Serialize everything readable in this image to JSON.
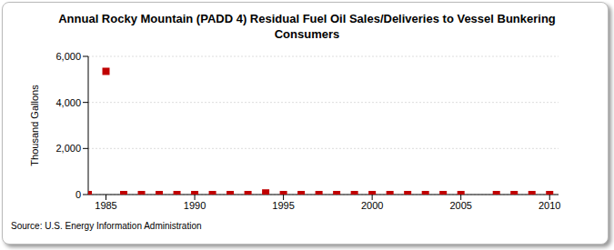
{
  "chart_data": {
    "type": "scatter",
    "title": "Annual Rocky Mountain (PADD 4) Residual Fuel Oil Sales/Deliveries to Vessel Bunkering Consumers",
    "y_label": "Thousand Gallons",
    "source": "Source: U.S. Energy Information Administration",
    "x": [
      1984,
      1985,
      1986,
      1987,
      1988,
      1989,
      1990,
      1991,
      1992,
      1993,
      1994,
      1995,
      1996,
      1997,
      1998,
      1999,
      2000,
      2001,
      2002,
      2003,
      2004,
      2005,
      2007,
      2008,
      2009,
      2010
    ],
    "values": [
      0,
      5350,
      0,
      0,
      0,
      0,
      0,
      0,
      0,
      0,
      70,
      0,
      0,
      0,
      0,
      0,
      0,
      0,
      0,
      0,
      0,
      0,
      0,
      0,
      0,
      0
    ],
    "color": "#c00000",
    "marker": "square",
    "xlim": [
      1984,
      2010.5
    ],
    "xticks": [
      1985,
      1990,
      1995,
      2000,
      2005,
      2010
    ],
    "ylim": [
      0,
      6000
    ],
    "yticks": [
      0,
      {
        "value": 2000,
        "label": "2,000"
      },
      {
        "value": 4000,
        "label": "4,000"
      },
      {
        "value": 6000,
        "label": "6,000"
      }
    ],
    "grid": true
  }
}
